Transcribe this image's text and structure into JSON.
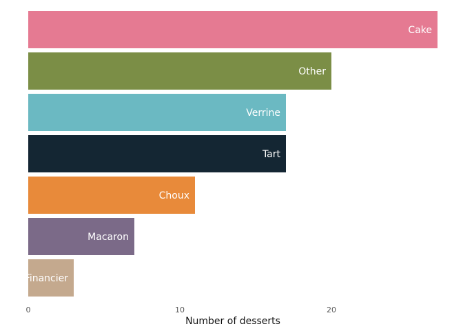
{
  "chart_data": {
    "type": "bar",
    "orientation": "horizontal",
    "categories": [
      "Cake",
      "Other",
      "Verrine",
      "Tart",
      "Choux",
      "Macaron",
      "Financier"
    ],
    "values": [
      27,
      20,
      17,
      17,
      11,
      7,
      3
    ],
    "colors": [
      "#e57a92",
      "#7b8e46",
      "#6bb9c2",
      "#142633",
      "#e88a3a",
      "#7b6a88",
      "#c4a98e"
    ],
    "title": "",
    "xlabel": "Number of desserts",
    "ylabel": "",
    "xlim": [
      0,
      27
    ],
    "xticks": [
      "0",
      "10",
      "20"
    ],
    "grid": false,
    "legend": "none",
    "labels_inside_bars": true
  }
}
